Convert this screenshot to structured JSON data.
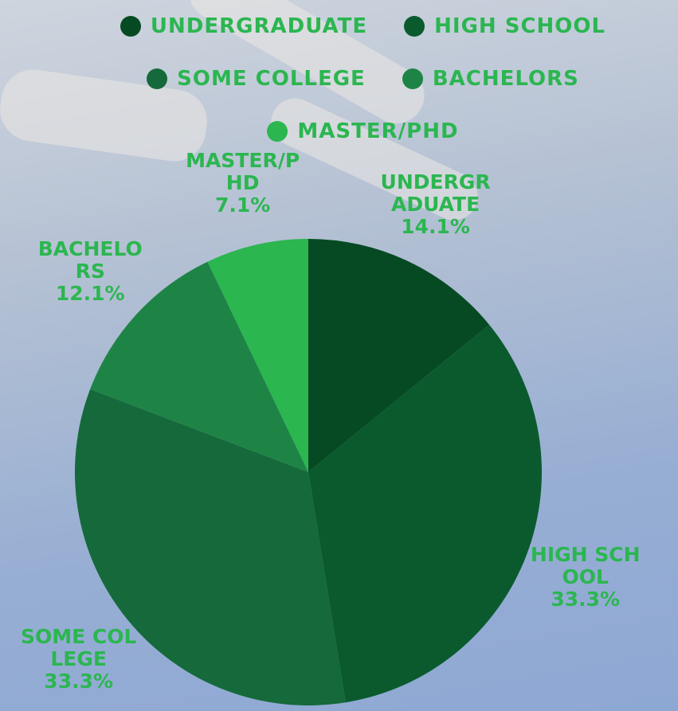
{
  "chart_data": {
    "type": "pie",
    "categories": [
      "UNDERGRADUATE",
      "HIGH SCHOOL",
      "SOME COLLEGE",
      "BACHELORS",
      "MASTER/PHD"
    ],
    "values": [
      14.1,
      33.3,
      33.3,
      12.1,
      7.1
    ],
    "value_labels": [
      "14.1%",
      "33.3%",
      "33.3%",
      "12.1%",
      "7.1%"
    ],
    "colors": [
      "#064a24",
      "#0a5a2e",
      "#15693a",
      "#1e8446",
      "#2bb650"
    ]
  }
}
